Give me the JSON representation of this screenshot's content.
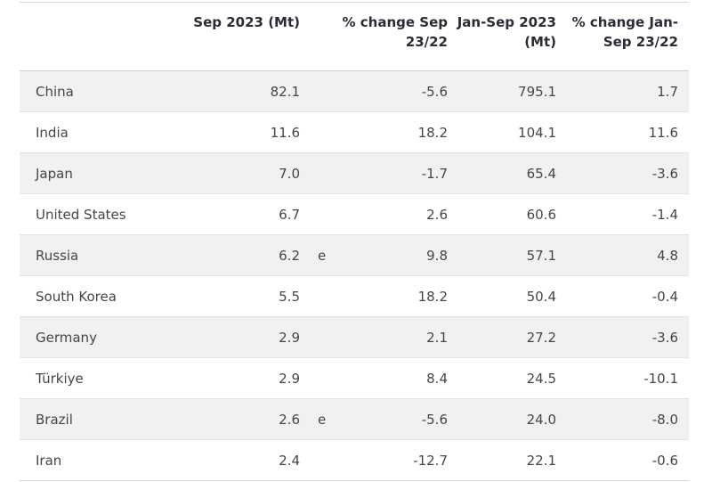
{
  "chart_data": {
    "type": "table",
    "columns": [
      "",
      "Sep 2023 (Mt)",
      "",
      "% change Sep\n23/22",
      "Jan-Sep 2023\n(Mt)",
      "% change Jan-\nSep 23/22"
    ],
    "rows": [
      [
        "China",
        "82.1",
        "",
        "-5.6",
        "795.1",
        "1.7"
      ],
      [
        "India",
        "11.6",
        "",
        "18.2",
        "104.1",
        "11.6"
      ],
      [
        "Japan",
        "7.0",
        "",
        "-1.7",
        "65.4",
        "-3.6"
      ],
      [
        "United States",
        "6.7",
        "",
        "2.6",
        "60.6",
        "-1.4"
      ],
      [
        "Russia",
        "6.2",
        "e",
        "9.8",
        "57.1",
        "4.8"
      ],
      [
        "South Korea",
        "5.5",
        "",
        "18.2",
        "50.4",
        "-0.4"
      ],
      [
        "Germany",
        "2.9",
        "",
        "2.1",
        "27.2",
        "-3.6"
      ],
      [
        "Türkiye",
        "2.9",
        "",
        "8.4",
        "24.5",
        "-10.1"
      ],
      [
        "Brazil",
        "2.6",
        "e",
        "-5.6",
        "24.0",
        "-8.0"
      ],
      [
        "Iran",
        "2.4",
        "",
        "-12.7",
        "22.1",
        "-0.6"
      ]
    ],
    "footnote_marker": "e",
    "colors": {
      "stripe": "#f1f1f1",
      "border": "#d9d9d9",
      "header_text": "#2d2a35",
      "body_text": "#464646"
    },
    "layout": {
      "striped": true,
      "header_align": "right",
      "numeric_align": "right"
    }
  }
}
